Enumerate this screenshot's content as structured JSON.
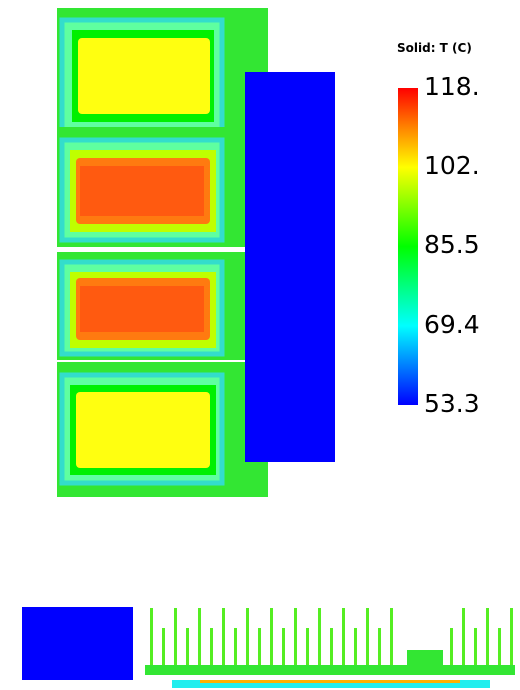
{
  "legend": {
    "title": "Solid: T (C)",
    "labels": [
      "118.",
      "102.",
      "85.5",
      "69.4",
      "53.3"
    ]
  }
}
